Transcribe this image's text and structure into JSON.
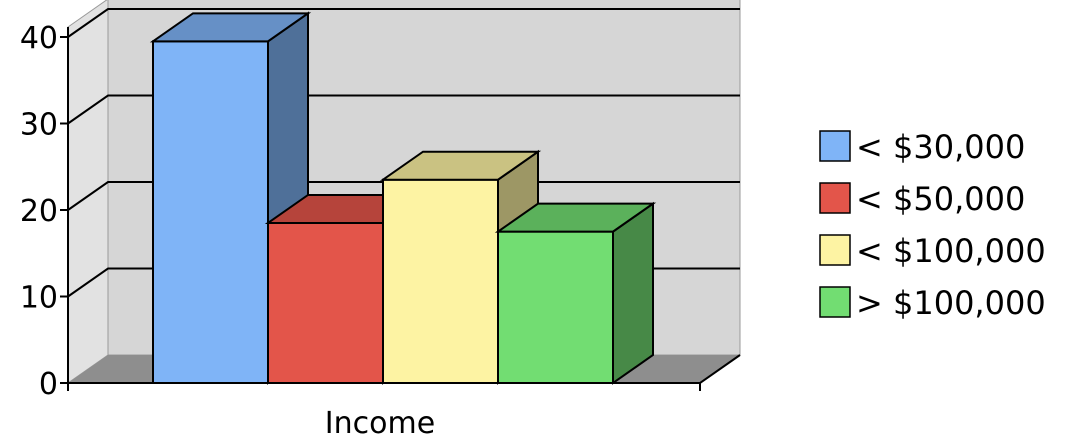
{
  "chart_data": {
    "type": "bar",
    "categories": [
      "Income"
    ],
    "series": [
      {
        "name": "< $30,000",
        "values": [
          39.5
        ],
        "color": "#7fb4f7"
      },
      {
        "name": "< $50,000",
        "values": [
          18.5
        ],
        "color": "#e3554a"
      },
      {
        "name": "< $100,000",
        "values": [
          23.5
        ],
        "color": "#fdf3a3"
      },
      {
        "name": "> $100,000",
        "values": [
          17.5
        ],
        "color": "#72dd72"
      }
    ],
    "title": "",
    "xlabel": "Income",
    "ylabel": "",
    "ylim": [
      0,
      40
    ],
    "yticks": [
      0,
      10,
      20,
      30,
      40
    ],
    "grid": true,
    "legend_position": "right",
    "style": "3d-clustered-column",
    "wall_color": "#d6d6d6",
    "floor_color": "#8e8e8e"
  }
}
